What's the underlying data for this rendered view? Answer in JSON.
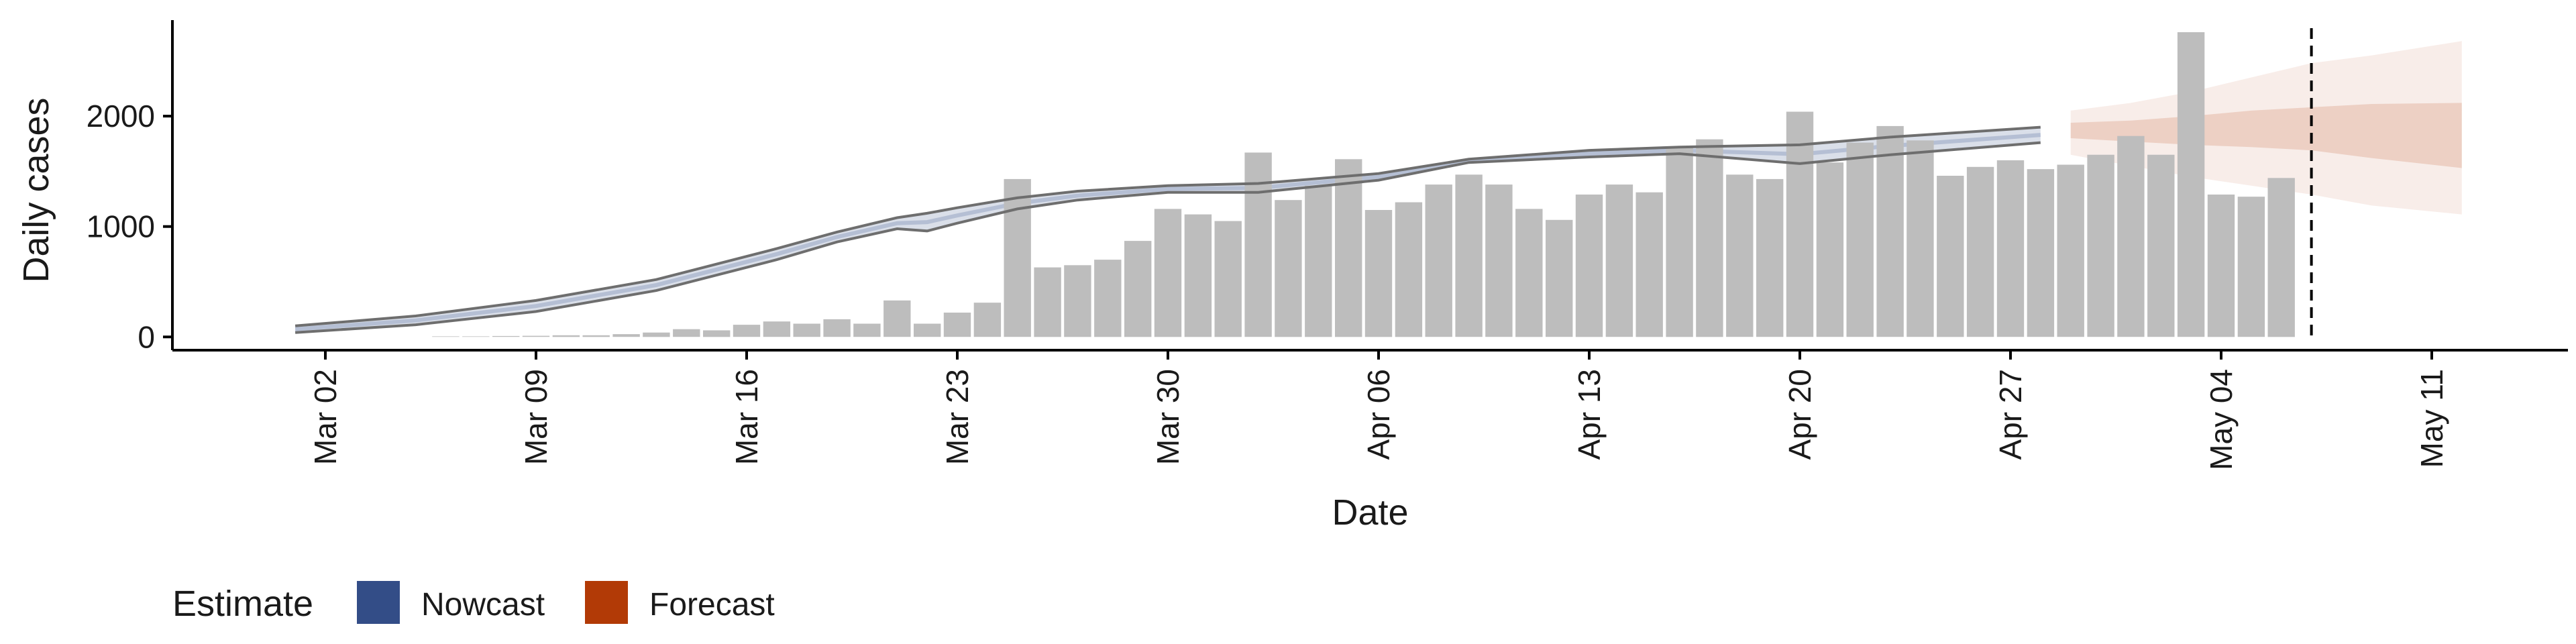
{
  "chart_data": {
    "type": "bar",
    "title": "",
    "xlabel": "Date",
    "ylabel": "Daily cases",
    "ylim": [
      -120,
      2900
    ],
    "xlim": [
      "2020-02-23",
      "2020-05-15"
    ],
    "x_ticks": [
      "2020-03-02",
      "2020-03-09",
      "2020-03-16",
      "2020-03-23",
      "2020-03-30",
      "2020-04-06",
      "2020-04-13",
      "2020-04-20",
      "2020-04-27",
      "2020-05-04",
      "2020-05-11"
    ],
    "x_tick_labels": [
      "Mar 02",
      "Mar 09",
      "Mar 16",
      "Mar 23",
      "Mar 30",
      "Apr 06",
      "Apr 13",
      "Apr 20",
      "Apr 27",
      "May 04",
      "May 11"
    ],
    "y_ticks": [
      0,
      1000,
      2000
    ],
    "y_tick_labels": [
      "0",
      "1000",
      "2000"
    ],
    "grid": false,
    "legend_position": "bottom-left",
    "legend": {
      "title": "Estimate",
      "entries": [
        {
          "label": "Nowcast",
          "color": "#334d87"
        },
        {
          "label": "Forecast",
          "color": "#b23a06"
        }
      ]
    },
    "reference_line": {
      "date": "2020-05-07",
      "style": "dashed"
    },
    "colors": {
      "bars": "#bdbdbd",
      "nowcast": "#334d87",
      "forecast": "#b23a06",
      "outline": "#6e6e6e",
      "axis": "#000000"
    },
    "bar_series": {
      "name": "Daily cases",
      "start_date": "2020-03-06",
      "values": [
        5,
        5,
        8,
        10,
        15,
        15,
        25,
        40,
        70,
        60,
        110,
        140,
        120,
        160,
        120,
        330,
        120,
        220,
        310,
        1430,
        630,
        650,
        700,
        870,
        1160,
        1110,
        1050,
        1670,
        1240,
        1370,
        1610,
        1150,
        1220,
        1380,
        1470,
        1380,
        1160,
        1060,
        1290,
        1380,
        1310,
        1720,
        1790,
        1470,
        1430,
        2040,
        1580,
        1760,
        1910,
        1780,
        1460,
        1540,
        1600,
        1520,
        1560,
        1650,
        1820,
        1650,
        2760,
        1290,
        1270,
        1440
      ]
    },
    "nowcast": {
      "name": "Nowcast",
      "x": [
        "2020-03-01",
        "2020-03-05",
        "2020-03-09",
        "2020-03-13",
        "2020-03-17",
        "2020-03-19",
        "2020-03-21",
        "2020-03-22",
        "2020-03-23",
        "2020-03-25",
        "2020-03-27",
        "2020-03-30",
        "2020-04-02",
        "2020-04-06",
        "2020-04-09",
        "2020-04-13",
        "2020-04-16",
        "2020-04-20",
        "2020-04-23",
        "2020-04-28"
      ],
      "upper": [
        100,
        190,
        330,
        520,
        800,
        950,
        1080,
        1120,
        1170,
        1260,
        1320,
        1370,
        1390,
        1480,
        1610,
        1690,
        1720,
        1740,
        1810,
        1900
      ],
      "lower": [
        40,
        110,
        230,
        420,
        700,
        860,
        980,
        960,
        1030,
        1160,
        1240,
        1310,
        1310,
        1420,
        1580,
        1630,
        1660,
        1570,
        1650,
        1760
      ]
    },
    "forecast": {
      "name": "Forecast",
      "x": [
        "2020-04-29",
        "2020-05-01",
        "2020-05-03",
        "2020-05-05",
        "2020-05-07",
        "2020-05-09",
        "2020-05-12"
      ],
      "outer_upper": [
        2050,
        2120,
        2220,
        2350,
        2480,
        2550,
        2680
      ],
      "outer_lower": [
        1650,
        1550,
        1450,
        1370,
        1290,
        1190,
        1110
      ],
      "inner_upper": [
        1940,
        1960,
        2000,
        2050,
        2080,
        2110,
        2120
      ],
      "inner_lower": [
        1800,
        1770,
        1740,
        1720,
        1690,
        1620,
        1530
      ]
    }
  }
}
